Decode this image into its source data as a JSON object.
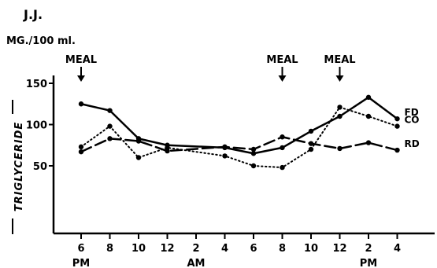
{
  "chart_data": {
    "type": "line",
    "title": "J.J.",
    "unit_label": "MG./100 ml.",
    "ylabel": "TRIGLYCERIDE",
    "ylim": [
      0,
      160
    ],
    "yticks": [
      50,
      100,
      150
    ],
    "x_ticks": [
      "6",
      "8",
      "10",
      "12",
      "2",
      "4",
      "6",
      "8",
      "10",
      "12",
      "2",
      "4"
    ],
    "x_sublabels": [
      {
        "text": "PM",
        "tick_index": 0
      },
      {
        "text": "AM",
        "tick_index": 4
      },
      {
        "text": "PM",
        "tick_index": 10
      }
    ],
    "annotations": [
      {
        "text": "MEAL",
        "tick_index": 0
      },
      {
        "text": "MEAL",
        "tick_index": 7
      },
      {
        "text": "MEAL",
        "tick_index": 9
      }
    ],
    "series": [
      {
        "name": "FD",
        "style": "solid",
        "points": [
          [
            0,
            125
          ],
          [
            1,
            117
          ],
          [
            2,
            83
          ],
          [
            3,
            75
          ],
          [
            5,
            72
          ],
          [
            6,
            65
          ],
          [
            7,
            72
          ],
          [
            8,
            92
          ],
          [
            9,
            110
          ],
          [
            10,
            133
          ],
          [
            11,
            107
          ]
        ]
      },
      {
        "name": "CO",
        "style": "dotted",
        "points": [
          [
            0,
            73
          ],
          [
            1,
            98
          ],
          [
            2,
            60
          ],
          [
            3,
            72
          ],
          [
            5,
            62
          ],
          [
            6,
            50
          ],
          [
            7,
            48
          ],
          [
            8,
            70
          ],
          [
            9,
            121
          ],
          [
            10,
            110
          ],
          [
            11,
            98
          ]
        ]
      },
      {
        "name": "RD",
        "style": "dashed",
        "points": [
          [
            0,
            67
          ],
          [
            1,
            83
          ],
          [
            2,
            80
          ],
          [
            3,
            68
          ],
          [
            5,
            73
          ],
          [
            6,
            70
          ],
          [
            7,
            85
          ],
          [
            8,
            77
          ],
          [
            9,
            71
          ],
          [
            10,
            78
          ],
          [
            11,
            69
          ]
        ]
      }
    ]
  }
}
